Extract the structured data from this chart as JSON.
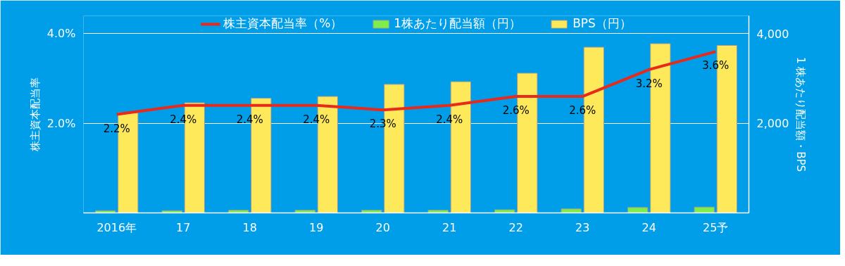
{
  "chart_data": {
    "type": "bar",
    "categories": [
      "2016年",
      "17",
      "18",
      "19",
      "20",
      "21",
      "22",
      "23",
      "24",
      "25予"
    ],
    "ylabel": "株主資本配当率",
    "y2label": "1 株あたり配当額・BPS",
    "ylim": [
      0,
      4.4
    ],
    "yticks": [
      {
        "value": 0,
        "label": null
      },
      {
        "value": 2,
        "label": "2.0%"
      },
      {
        "value": 4,
        "label": "4.0%"
      }
    ],
    "y2lim": [
      0,
      4400
    ],
    "y2ticks": [
      {
        "value": 0,
        "label": null
      },
      {
        "value": 2000,
        "label": "2,000"
      },
      {
        "value": 4000,
        "label": "4,000"
      }
    ],
    "grid": "y",
    "legend": "top",
    "series": [
      {
        "name": "株主資本配当率（%）",
        "type": "line",
        "color": "#e8291c",
        "values": [
          2.2,
          2.4,
          2.4,
          2.4,
          2.3,
          2.4,
          2.6,
          2.6,
          3.2,
          3.6
        ],
        "value_labels": [
          "2.2%",
          "2.4%",
          "2.4%",
          "2.4%",
          "2.3%",
          "2.4%",
          "2.6%",
          "2.6%",
          "3.2%",
          "3.6%"
        ]
      },
      {
        "name": "1株あたり配当額（円）",
        "axis": "y2",
        "color": "#7fee4a",
        "values": [
          50,
          50,
          60,
          60,
          60,
          60,
          70,
          90,
          120,
          130
        ]
      },
      {
        "name": "BPS（円）",
        "axis": "y2",
        "color": "#fde95a",
        "values": [
          2240,
          2460,
          2560,
          2600,
          2870,
          2930,
          3120,
          3700,
          3780,
          3740
        ]
      }
    ]
  }
}
